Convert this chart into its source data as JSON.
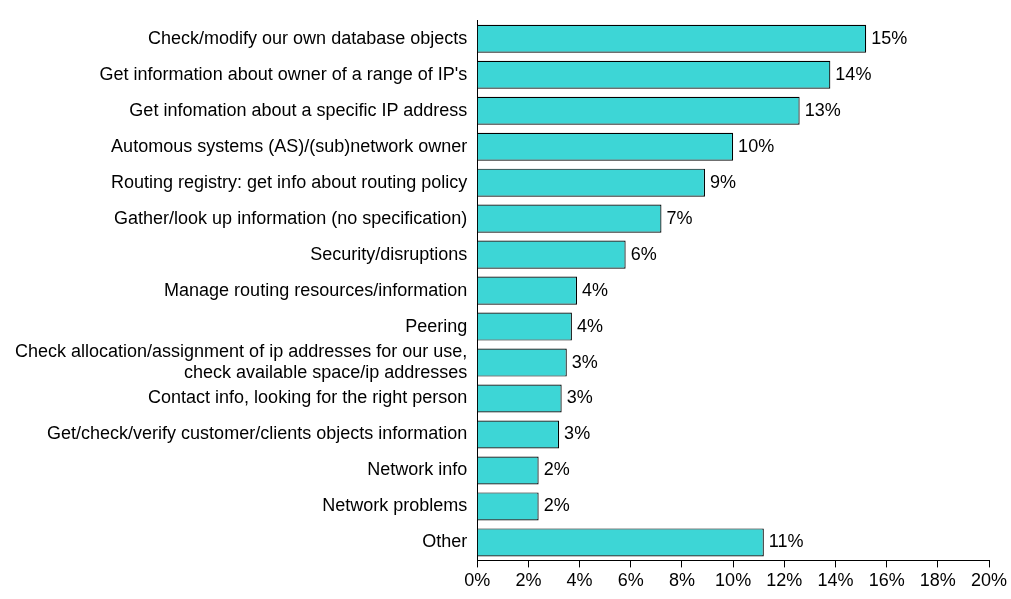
{
  "chart_data": {
    "type": "bar",
    "orientation": "horizontal",
    "categories": [
      "Check/modify our own database objects",
      "Get information about owner of a range of IP's",
      "Get infomation about a specific IP address",
      "Automous systems (AS)/(sub)network owner",
      "Routing registry: get info about routing policy",
      "Gather/look up information (no specification)",
      "Security/disruptions",
      "Manage routing resources/information",
      "Peering",
      "Check allocation/assignment of ip addresses for our use, check available space/ip addresses",
      "Contact info, looking for the right person",
      "Get/check/verify customer/clients objects information",
      "Network info",
      "Network problems",
      "Other"
    ],
    "values": [
      15.2,
      13.8,
      12.6,
      10.0,
      8.9,
      7.2,
      5.8,
      3.9,
      3.7,
      3.5,
      3.3,
      3.2,
      2.4,
      2.4,
      11.2
    ],
    "value_labels": [
      "15%",
      "14%",
      "13%",
      "10%",
      "9%",
      "7%",
      "6%",
      "4%",
      "4%",
      "3%",
      "3%",
      "3%",
      "2%",
      "2%",
      "11%"
    ],
    "color": "#3dd6d6",
    "xlim": [
      0,
      20
    ],
    "xticks": [
      {
        "value": 0,
        "label": "0%"
      },
      {
        "value": 2,
        "label": "2%"
      },
      {
        "value": 4,
        "label": "4%"
      },
      {
        "value": 6,
        "label": "6%"
      },
      {
        "value": 8,
        "label": "8%"
      },
      {
        "value": 10,
        "label": "10%"
      },
      {
        "value": 12,
        "label": "12%"
      },
      {
        "value": 14,
        "label": "14%"
      },
      {
        "value": 16,
        "label": "16%"
      },
      {
        "value": 18,
        "label": "18%"
      },
      {
        "value": 20,
        "label": "20%"
      }
    ],
    "grid": false,
    "legend": false
  }
}
